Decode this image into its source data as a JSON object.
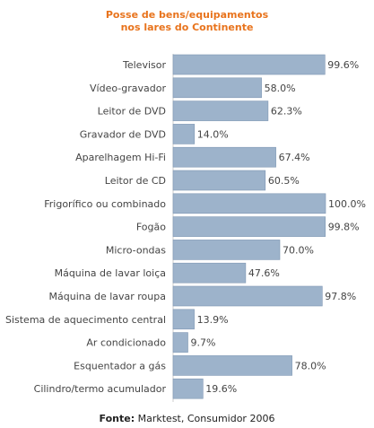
{
  "chart_data": {
    "type": "bar",
    "orientation": "horizontal",
    "title_lines": [
      "Posse de bens/equipamentos",
      "nos lares do Continente"
    ],
    "categories": [
      "Televisor",
      "Vídeo-gravador",
      "Leitor de DVD",
      "Gravador de DVD",
      "Aparelhagem Hi-Fi",
      "Leitor de CD",
      "Frigorífico ou combinado",
      "Fogão",
      "Micro-ondas",
      "Máquina de lavar loiça",
      "Máquina de lavar roupa",
      "Sistema de aquecimento central",
      "Ar condicionado",
      "Esquentador a gás",
      "Cilindro/termo acumulador"
    ],
    "values": [
      99.6,
      58.0,
      62.3,
      14.0,
      67.4,
      60.5,
      100.0,
      99.8,
      70.0,
      47.6,
      97.8,
      13.9,
      9.7,
      78.0,
      19.6
    ],
    "value_labels": [
      "99.6%",
      "58.0%",
      "62.3%",
      "14.0%",
      "67.4%",
      "60.5%",
      "100.0%",
      "99.8%",
      "70.0%",
      "47.6%",
      "97.8%",
      "13.9%",
      "9.7%",
      "78.0%",
      "19.6%"
    ],
    "xlim": [
      0,
      100
    ],
    "grid": false,
    "bar_color": "#9db3cb",
    "bar_border_color": "#7f97b3",
    "title_color": "#e8731c"
  },
  "source": {
    "label": "Fonte:",
    "text": "Marktest, Consumidor 2006"
  }
}
